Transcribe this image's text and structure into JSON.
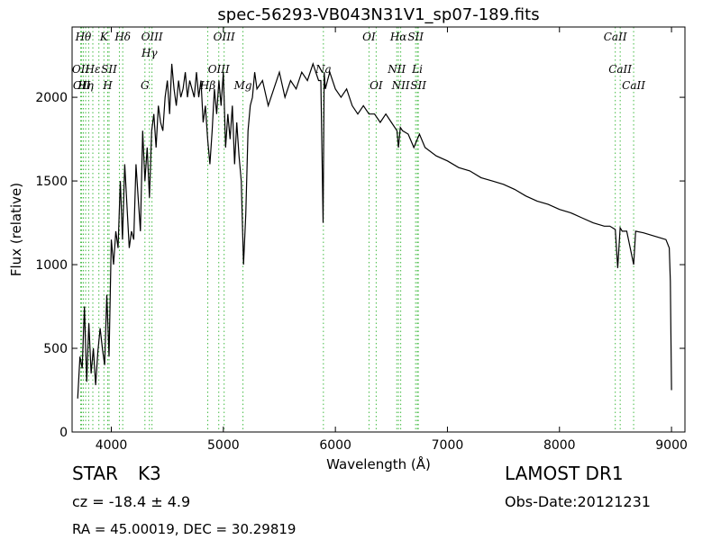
{
  "chart_data": {
    "type": "line",
    "title": "spec-56293-VB043N31V1_sp07-189.fits",
    "xlabel": "Wavelength (Å)",
    "ylabel": "Flux (relative)",
    "xlim": [
      3650,
      9120
    ],
    "ylim": [
      0,
      2420
    ],
    "xticks": [
      {
        "value": 4000,
        "label": "4000"
      },
      {
        "value": 5000,
        "label": "5000"
      },
      {
        "value": 6000,
        "label": "6000"
      },
      {
        "value": 7000,
        "label": "7000"
      },
      {
        "value": 8000,
        "label": "8000"
      },
      {
        "value": 9000,
        "label": "9000"
      }
    ],
    "yticks": [
      {
        "value": 0,
        "label": "0"
      },
      {
        "value": 500,
        "label": "500"
      },
      {
        "value": 1000,
        "label": "1000"
      },
      {
        "value": 1500,
        "label": "1500"
      },
      {
        "value": 2000,
        "label": "2000"
      }
    ],
    "grid": false,
    "line_color": "#000000",
    "marker_color": "#44bb44",
    "series": [
      {
        "x": [
          3700,
          3720,
          3740,
          3760,
          3780,
          3800,
          3820,
          3840,
          3860,
          3880,
          3900,
          3920,
          3940,
          3960,
          3980,
          4000,
          4020,
          4040,
          4060,
          4080,
          4100,
          4120,
          4140,
          4160,
          4180,
          4200,
          4220,
          4240,
          4260,
          4280,
          4300,
          4320,
          4340,
          4360,
          4380,
          4400,
          4420,
          4440,
          4460,
          4480,
          4500,
          4520,
          4540,
          4560,
          4580,
          4600,
          4620,
          4640,
          4660,
          4680,
          4700,
          4720,
          4740,
          4760,
          4780,
          4800,
          4820,
          4840,
          4860,
          4880,
          4900,
          4920,
          4940,
          4960,
          4980,
          5000,
          5020,
          5040,
          5060,
          5080,
          5100,
          5120,
          5140,
          5160,
          5180,
          5200,
          5220,
          5240,
          5260,
          5280,
          5300,
          5350,
          5400,
          5450,
          5500,
          5550,
          5600,
          5650,
          5700,
          5750,
          5800,
          5850,
          5870,
          5890,
          5900,
          5910,
          5930,
          5950,
          6000,
          6050,
          6100,
          6150,
          6200,
          6250,
          6300,
          6350,
          6400,
          6450,
          6500,
          6550,
          6563,
          6580,
          6600,
          6650,
          6700,
          6750,
          6800,
          6900,
          7000,
          7100,
          7200,
          7300,
          7400,
          7500,
          7600,
          7700,
          7800,
          7900,
          8000,
          8100,
          8200,
          8300,
          8400,
          8450,
          8498,
          8520,
          8542,
          8560,
          8600,
          8662,
          8680,
          8750,
          8800,
          8850,
          8900,
          8950,
          8980,
          8990,
          9000
        ],
        "y": [
          200,
          450,
          380,
          750,
          300,
          650,
          350,
          500,
          280,
          480,
          620,
          500,
          400,
          820,
          450,
          1150,
          1000,
          1200,
          1100,
          1500,
          1150,
          1600,
          1350,
          1100,
          1200,
          1150,
          1600,
          1400,
          1200,
          1800,
          1500,
          1700,
          1400,
          1800,
          1900,
          1700,
          1950,
          1850,
          1800,
          2000,
          2100,
          1900,
          2200,
          2050,
          1950,
          2100,
          2000,
          2050,
          2150,
          2000,
          2100,
          2050,
          2000,
          2150,
          2000,
          2100,
          1850,
          1950,
          1750,
          1600,
          1800,
          2050,
          1900,
          2100,
          1950,
          2150,
          1700,
          1900,
          1750,
          1950,
          1600,
          1850,
          1650,
          1500,
          1000,
          1300,
          1800,
          1950,
          2000,
          2150,
          2050,
          2100,
          1950,
          2050,
          2150,
          2000,
          2100,
          2050,
          2150,
          2100,
          2200,
          2100,
          2100,
          1250,
          2150,
          2050,
          2100,
          2150,
          2050,
          2000,
          2050,
          1950,
          1900,
          1950,
          1900,
          1900,
          1850,
          1900,
          1850,
          1800,
          1700,
          1820,
          1800,
          1780,
          1700,
          1780,
          1700,
          1650,
          1620,
          1580,
          1560,
          1520,
          1500,
          1480,
          1450,
          1410,
          1380,
          1360,
          1330,
          1310,
          1280,
          1250,
          1230,
          1230,
          1210,
          980,
          1220,
          1200,
          1200,
          1000,
          1200,
          1190,
          1180,
          1170,
          1160,
          1150,
          1100,
          900,
          250
        ]
      }
    ],
    "line_markers": [
      {
        "wl": 3727,
        "label": "OII",
        "row": 2
      },
      {
        "wl": 3735,
        "label": "OII",
        "row": 3
      },
      {
        "wl": 3750,
        "label": "Hθ",
        "row": 0
      },
      {
        "wl": 3771,
        "label": "Hη",
        "row": 3
      },
      {
        "wl": 3798,
        "label": "",
        "row": 1
      },
      {
        "wl": 3835,
        "label": "Hε",
        "row": 2
      },
      {
        "wl": 3889,
        "label": "",
        "row": 2
      },
      {
        "wl": 3934,
        "label": "K",
        "row": 0
      },
      {
        "wl": 3968,
        "label": "H",
        "row": 3
      },
      {
        "wl": 3980,
        "label": "SII",
        "row": 2
      },
      {
        "wl": 4072,
        "label": "",
        "row": 2
      },
      {
        "wl": 4102,
        "label": "Hδ",
        "row": 0
      },
      {
        "wl": 4300,
        "label": "G",
        "row": 3
      },
      {
        "wl": 4340,
        "label": "Hγ",
        "row": 1
      },
      {
        "wl": 4363,
        "label": "OIII",
        "row": 0
      },
      {
        "wl": 4861,
        "label": "Hβ",
        "row": 3
      },
      {
        "wl": 4959,
        "label": "OIII",
        "row": 2
      },
      {
        "wl": 5007,
        "label": "OIII",
        "row": 0
      },
      {
        "wl": 5175,
        "label": "Mg",
        "row": 3
      },
      {
        "wl": 5893,
        "label": "Na",
        "row": 2
      },
      {
        "wl": 6300,
        "label": "OI",
        "row": 0
      },
      {
        "wl": 6364,
        "label": "OI",
        "row": 3
      },
      {
        "wl": 6548,
        "label": "NII",
        "row": 2
      },
      {
        "wl": 6563,
        "label": "Hα",
        "row": 0
      },
      {
        "wl": 6583,
        "label": "NII",
        "row": 3
      },
      {
        "wl": 6716,
        "label": "SII",
        "row": 0
      },
      {
        "wl": 6731,
        "label": "Li",
        "row": 2
      },
      {
        "wl": 6740,
        "label": "SII",
        "row": 3
      },
      {
        "wl": 8498,
        "label": "CaII",
        "row": 0
      },
      {
        "wl": 8542,
        "label": "CaII",
        "row": 2
      },
      {
        "wl": 8662,
        "label": "CaII",
        "row": 3
      }
    ]
  },
  "info": {
    "class_label": "STAR",
    "subclass": "K3",
    "cz": "cz = -18.4 ± 4.9",
    "radec": "RA = 45.00019, DEC = 30.29819",
    "survey": "LAMOST DR1",
    "obs_date": "Obs-Date:20121231"
  }
}
